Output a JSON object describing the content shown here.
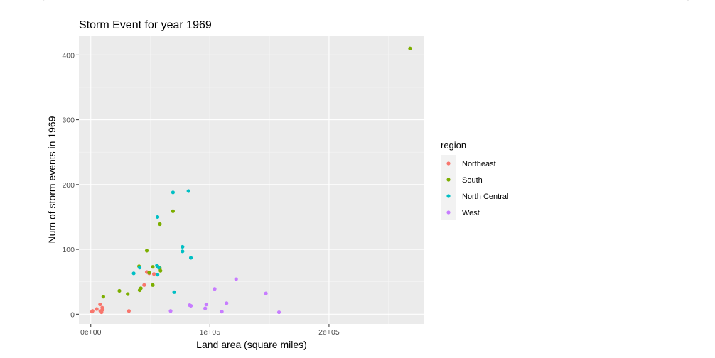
{
  "chart_data": {
    "type": "scatter",
    "title": "Storm Event for year 1969",
    "xlabel": "Land area (square miles)",
    "ylabel": "Num of storm events in 1969",
    "xlim": [
      -10000,
      280000
    ],
    "ylim": [
      -15,
      430
    ],
    "xticks": [
      {
        "value": 0,
        "label": "0e+00"
      },
      {
        "value": 100000,
        "label": "1e+05"
      },
      {
        "value": 200000,
        "label": "2e+05"
      }
    ],
    "yticks": [
      {
        "value": 0,
        "label": "0"
      },
      {
        "value": 100,
        "label": "100"
      },
      {
        "value": 200,
        "label": "200"
      },
      {
        "value": 300,
        "label": "300"
      },
      {
        "value": 400,
        "label": "400"
      }
    ],
    "grid": true,
    "legend_title": "region",
    "legend_position": "right",
    "series": [
      {
        "name": "Northeast",
        "color": "#F8766D",
        "points": [
          [
            1000,
            4
          ],
          [
            1500,
            5
          ],
          [
            5000,
            8
          ],
          [
            7800,
            15
          ],
          [
            8000,
            5
          ],
          [
            9000,
            3
          ],
          [
            9600,
            10
          ],
          [
            10000,
            7
          ],
          [
            32000,
            5
          ],
          [
            44800,
            45
          ],
          [
            47000,
            65
          ],
          [
            49000,
            63
          ],
          [
            53000,
            62
          ]
        ]
      },
      {
        "name": "South",
        "color": "#7CAE00",
        "points": [
          [
            10500,
            27
          ],
          [
            24000,
            36
          ],
          [
            31000,
            31
          ],
          [
            40500,
            74
          ],
          [
            41000,
            37
          ],
          [
            42000,
            40
          ],
          [
            47000,
            98
          ],
          [
            49000,
            64
          ],
          [
            52000,
            73
          ],
          [
            52000,
            45
          ],
          [
            56000,
            74
          ],
          [
            58000,
            71
          ],
          [
            58000,
            139
          ],
          [
            58500,
            67
          ],
          [
            69000,
            159
          ],
          [
            268000,
            410
          ]
        ]
      },
      {
        "name": "North Central",
        "color": "#00BFC4",
        "points": [
          [
            36000,
            63
          ],
          [
            41000,
            72
          ],
          [
            56000,
            150
          ],
          [
            55500,
            75
          ],
          [
            57000,
            72
          ],
          [
            56000,
            61
          ],
          [
            69000,
            188
          ],
          [
            70000,
            34
          ],
          [
            77000,
            104
          ],
          [
            77000,
            97
          ],
          [
            82000,
            190
          ],
          [
            84000,
            87
          ]
        ]
      },
      {
        "name": "West",
        "color": "#C77CFF",
        "points": [
          [
            67000,
            5
          ],
          [
            83000,
            14
          ],
          [
            84000,
            13
          ],
          [
            96000,
            9
          ],
          [
            97000,
            15
          ],
          [
            104000,
            39
          ],
          [
            110000,
            4
          ],
          [
            114000,
            17
          ],
          [
            122000,
            54
          ],
          [
            147000,
            32
          ],
          [
            158000,
            3
          ]
        ]
      }
    ]
  }
}
